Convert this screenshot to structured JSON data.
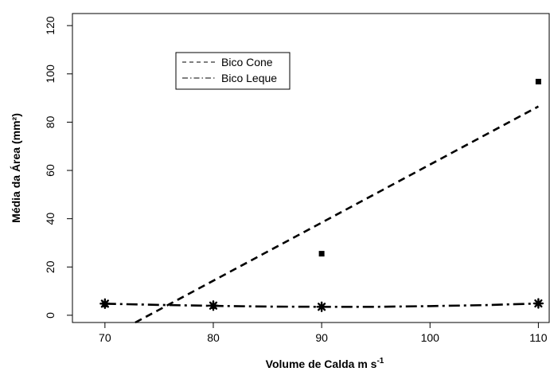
{
  "chart_data": {
    "type": "scatter",
    "xlabel": "Volume de Calda m s",
    "xlabel_sup": "-1",
    "ylabel": "Média da Área (mm²)",
    "xlim": [
      67,
      111
    ],
    "ylim": [
      -3,
      125
    ],
    "xticks": [
      70,
      80,
      90,
      100,
      110
    ],
    "yticks": [
      0,
      20,
      40,
      60,
      80,
      100,
      120
    ],
    "grid": false,
    "legend_position": "top-left",
    "series": [
      {
        "name": "Bico Cone",
        "marker": "square",
        "line_style": "dashed",
        "points": [
          {
            "x": 70,
            "y": 4.5
          },
          {
            "x": 80,
            "y": 3.8
          },
          {
            "x": 90,
            "y": 25.5
          },
          {
            "x": 110,
            "y": 96.8
          }
        ],
        "fit_line": [
          {
            "x": 72.8,
            "y": -3
          },
          {
            "x": 110,
            "y": 86.5
          }
        ]
      },
      {
        "name": "Bico Leque",
        "marker": "asterisk",
        "line_style": "dashdot",
        "points": [
          {
            "x": 70,
            "y": 4.8
          },
          {
            "x": 80,
            "y": 4.0
          },
          {
            "x": 90,
            "y": 3.5
          },
          {
            "x": 110,
            "y": 4.9
          }
        ],
        "fit_curve": [
          {
            "x": 70,
            "y": 4.8
          },
          {
            "x": 75,
            "y": 4.3
          },
          {
            "x": 80,
            "y": 3.9
          },
          {
            "x": 85,
            "y": 3.6
          },
          {
            "x": 90,
            "y": 3.5
          },
          {
            "x": 95,
            "y": 3.5
          },
          {
            "x": 100,
            "y": 3.8
          },
          {
            "x": 105,
            "y": 4.2
          },
          {
            "x": 110,
            "y": 4.9
          }
        ]
      }
    ]
  }
}
